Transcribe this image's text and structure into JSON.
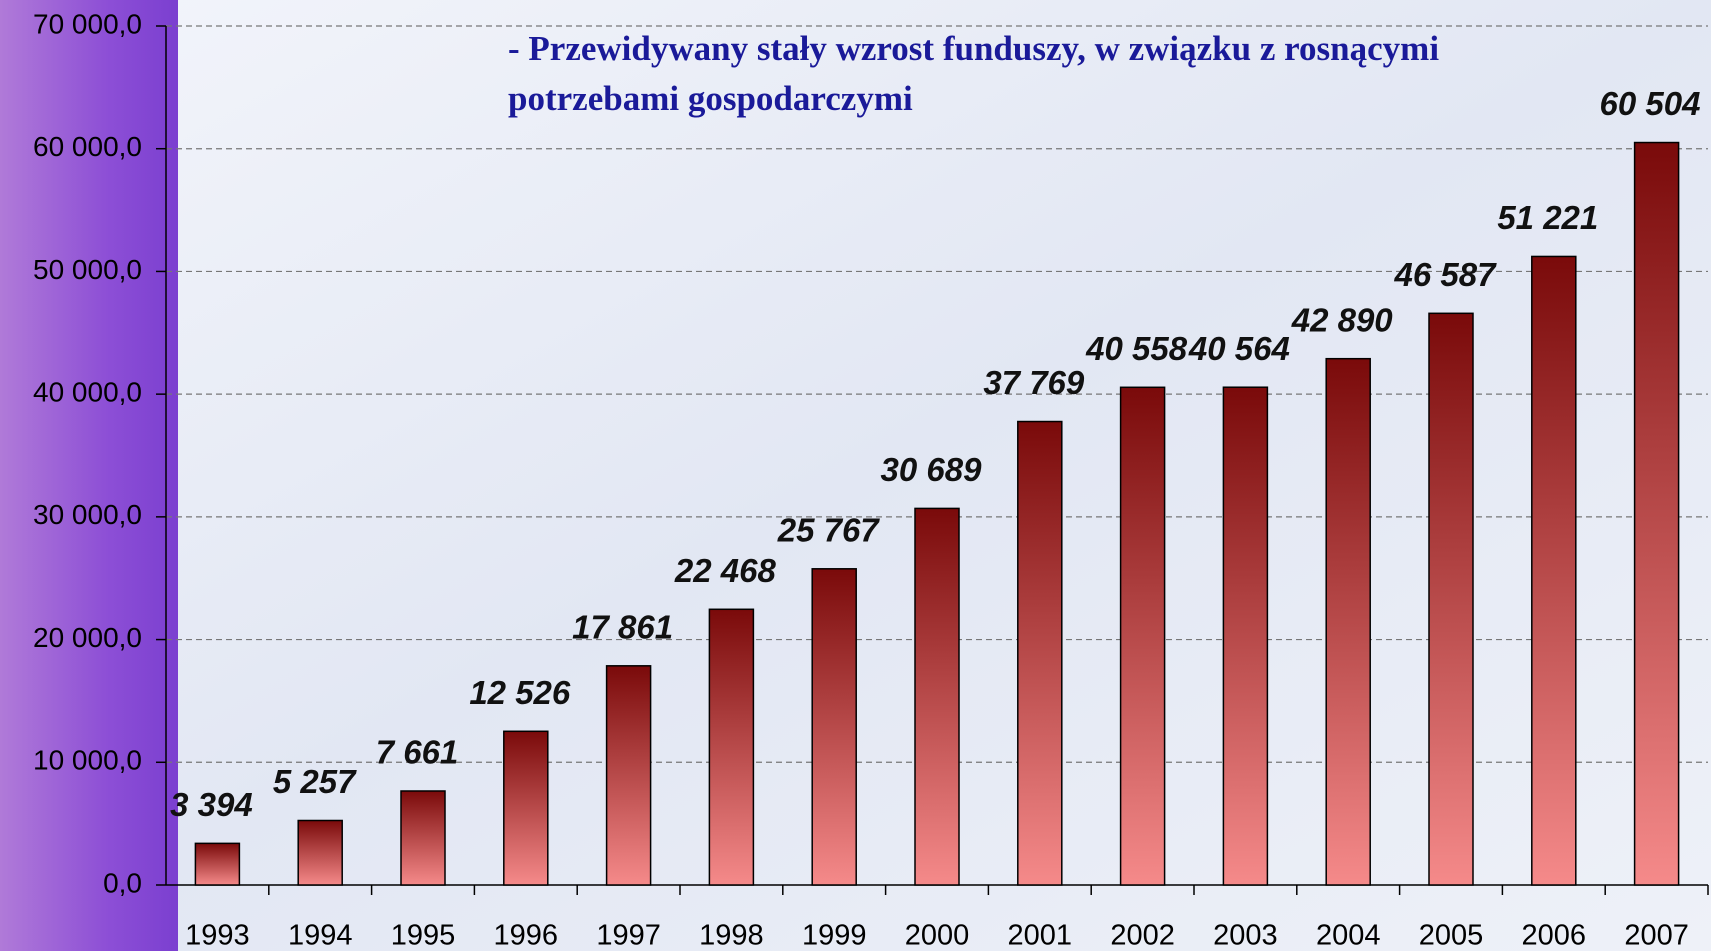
{
  "chart_data": {
    "type": "bar",
    "annotation": "- Przewidywany stały wzrost funduszy, w związku z rosnącymi potrzebami gospodarczymi",
    "categories": [
      "1993",
      "1994",
      "1995",
      "1996",
      "1997",
      "1998",
      "1999",
      "2000",
      "2001",
      "2002",
      "2003",
      "2004",
      "2005",
      "2006",
      "2007"
    ],
    "values": [
      3394,
      5257,
      7661,
      12526,
      17861,
      22468,
      25767,
      30689,
      37769,
      40558,
      40564,
      42890,
      46587,
      51221,
      60504
    ],
    "value_labels": [
      "3 394",
      "5 257",
      "7 661",
      "12 526",
      "17 861",
      "22 468",
      "25 767",
      "30 689",
      "37 769",
      "40 558",
      "40 564",
      "42 890",
      "46 587",
      "51 221",
      "60 504"
    ],
    "color": "#7a0a0a",
    "ylim": [
      0,
      70000
    ],
    "yticks": [
      {
        "value": 0,
        "label": "0,0"
      },
      {
        "value": 10000,
        "label": "10 000,0"
      },
      {
        "value": 20000,
        "label": "20 000,0"
      },
      {
        "value": 30000,
        "label": "30 000,0"
      },
      {
        "value": 40000,
        "label": "40 000,0"
      },
      {
        "value": 50000,
        "label": "50 000,0"
      },
      {
        "value": 60000,
        "label": "60 000,0"
      },
      {
        "value": 70000,
        "label": "70 000,0"
      }
    ],
    "grid": true
  }
}
